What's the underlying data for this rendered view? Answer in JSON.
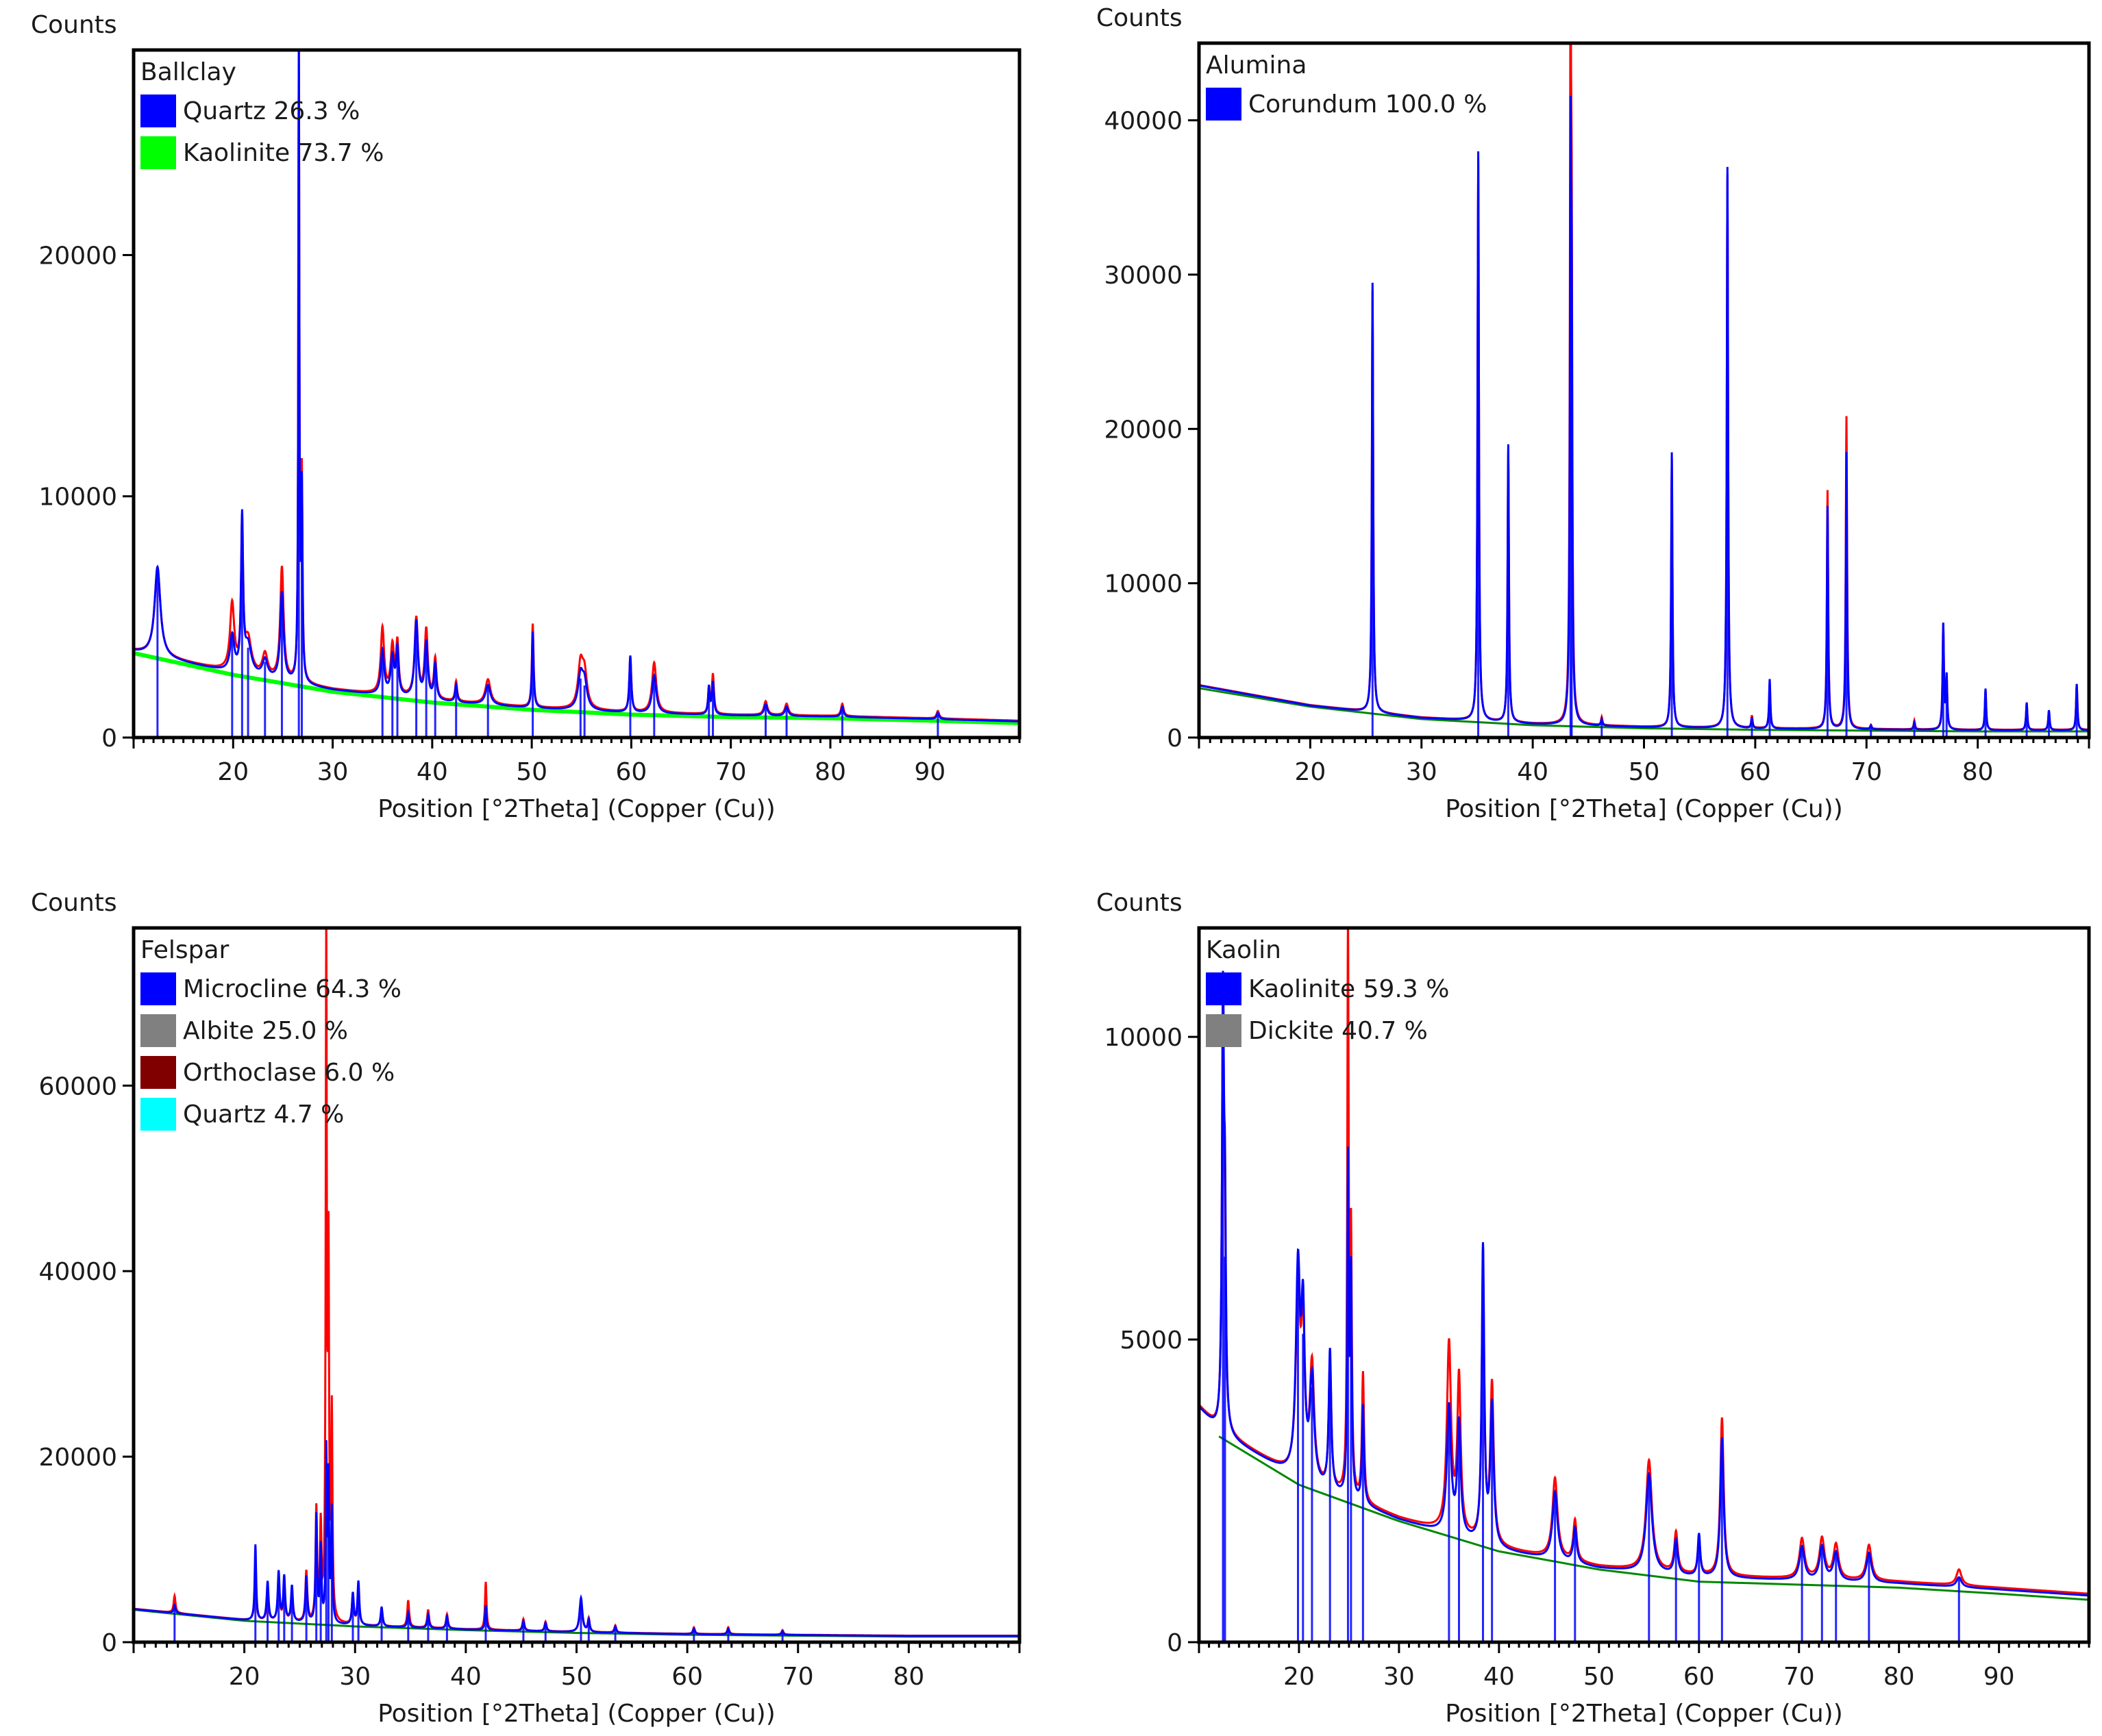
{
  "colors": {
    "observed": "#ff0000",
    "calculated": "#0000ff",
    "background": "#008800",
    "frame": "#000000"
  },
  "chart_data": [
    {
      "type": "line",
      "title": "Ballclay",
      "xlabel": "Position [°2Theta] (Copper (Cu))",
      "ylabel": "Counts",
      "xlim": [
        10,
        99
      ],
      "ylim": [
        0,
        28500
      ],
      "xticks": [
        20,
        30,
        40,
        50,
        60,
        70,
        80,
        90
      ],
      "yticks": [
        0,
        10000,
        20000
      ],
      "legend": [
        {
          "label": "Quartz 26.3 %",
          "color": "#0000ff"
        },
        {
          "label": "Kaolinite 73.7 %",
          "color": "#00ff00"
        }
      ],
      "legend_position": "top-left",
      "background_line": {
        "color": "#00ff00",
        "x": [
          10,
          20,
          30,
          40,
          50,
          60,
          70,
          80,
          90,
          99
        ],
        "y": [
          3500,
          2600,
          1900,
          1450,
          1150,
          950,
          850,
          800,
          700,
          600
        ]
      },
      "baseline": [
        [
          10,
          3600
        ],
        [
          20,
          2700
        ],
        [
          30,
          2000
        ],
        [
          40,
          1550
        ],
        [
          50,
          1250
        ],
        [
          60,
          1050
        ],
        [
          70,
          950
        ],
        [
          80,
          900
        ],
        [
          90,
          800
        ],
        [
          99,
          700
        ]
      ],
      "peaks": [
        {
          "x": 12.4,
          "obs": 7000,
          "calc": 7100,
          "w": 0.35
        },
        {
          "x": 19.9,
          "obs": 5500,
          "calc": 4200,
          "w": 0.25
        },
        {
          "x": 20.9,
          "obs": 8600,
          "calc": 9000,
          "w": 0.12
        },
        {
          "x": 21.5,
          "obs": 4000,
          "calc": 3800,
          "w": 0.4
        },
        {
          "x": 23.2,
          "obs": 3400,
          "calc": 3200,
          "w": 0.3
        },
        {
          "x": 24.9,
          "obs": 7000,
          "calc": 6000,
          "w": 0.2
        },
        {
          "x": 26.6,
          "obs": 28500,
          "calc": 28500,
          "w": 0.06
        },
        {
          "x": 26.9,
          "obs": 10500,
          "calc": 10000,
          "w": 0.08
        },
        {
          "x": 35.0,
          "obs": 4500,
          "calc": 3600,
          "w": 0.2
        },
        {
          "x": 36.0,
          "obs": 3700,
          "calc": 3300,
          "w": 0.2
        },
        {
          "x": 36.5,
          "obs": 3800,
          "calc": 3600,
          "w": 0.15
        },
        {
          "x": 38.4,
          "obs": 4900,
          "calc": 4800,
          "w": 0.2
        },
        {
          "x": 39.4,
          "obs": 4400,
          "calc": 3900,
          "w": 0.18
        },
        {
          "x": 40.3,
          "obs": 3200,
          "calc": 3000,
          "w": 0.15
        },
        {
          "x": 42.4,
          "obs": 2300,
          "calc": 2200,
          "w": 0.12
        },
        {
          "x": 45.6,
          "obs": 2400,
          "calc": 2200,
          "w": 0.3
        },
        {
          "x": 50.1,
          "obs": 4700,
          "calc": 4400,
          "w": 0.1
        },
        {
          "x": 54.9,
          "obs": 2900,
          "calc": 2500,
          "w": 0.3
        },
        {
          "x": 55.3,
          "obs": 2500,
          "calc": 2200,
          "w": 0.3
        },
        {
          "x": 59.9,
          "obs": 3300,
          "calc": 3400,
          "w": 0.12
        },
        {
          "x": 62.3,
          "obs": 3100,
          "calc": 2600,
          "w": 0.25
        },
        {
          "x": 67.8,
          "obs": 2000,
          "calc": 2100,
          "w": 0.1
        },
        {
          "x": 68.2,
          "obs": 2600,
          "calc": 2300,
          "w": 0.12
        },
        {
          "x": 73.5,
          "obs": 1500,
          "calc": 1400,
          "w": 0.2
        },
        {
          "x": 75.6,
          "obs": 1400,
          "calc": 1300,
          "w": 0.2
        },
        {
          "x": 81.2,
          "obs": 1400,
          "calc": 1300,
          "w": 0.15
        },
        {
          "x": 90.8,
          "obs": 1100,
          "calc": 1050,
          "w": 0.15
        }
      ]
    },
    {
      "type": "line",
      "title": "Alumina",
      "xlabel": "Position [°2Theta] (Copper (Cu))",
      "ylabel": "Counts",
      "xlim": [
        10,
        90
      ],
      "ylim": [
        0,
        45000
      ],
      "xticks": [
        20,
        30,
        40,
        50,
        60,
        70,
        80
      ],
      "yticks": [
        0,
        10000,
        20000,
        30000,
        40000
      ],
      "legend": [
        {
          "label": "Corundum 100.0 %",
          "color": "#0000ff"
        }
      ],
      "legend_position": "top-left",
      "background_line": {
        "color": "#008800",
        "x": [
          10,
          20,
          30,
          40,
          50,
          60,
          70,
          80,
          90
        ],
        "y": [
          3200,
          2000,
          1200,
          800,
          600,
          500,
          450,
          400,
          400
        ]
      },
      "baseline": [
        [
          10,
          3400
        ],
        [
          20,
          2100
        ],
        [
          30,
          1300
        ],
        [
          40,
          900
        ],
        [
          50,
          700
        ],
        [
          60,
          600
        ],
        [
          70,
          550
        ],
        [
          80,
          500
        ],
        [
          90,
          500
        ]
      ],
      "peaks": [
        {
          "x": 25.6,
          "obs": 29000,
          "calc": 29500,
          "w": 0.07
        },
        {
          "x": 35.1,
          "obs": 37500,
          "calc": 38000,
          "w": 0.07
        },
        {
          "x": 37.8,
          "obs": 18500,
          "calc": 19000,
          "w": 0.07
        },
        {
          "x": 43.4,
          "obs": 44500,
          "calc": 36000,
          "w": 0.07
        },
        {
          "x": 43.5,
          "obs": 23500,
          "calc": 22000,
          "w": 0.06
        },
        {
          "x": 46.2,
          "obs": 1300,
          "calc": 1200,
          "w": 0.07
        },
        {
          "x": 52.5,
          "obs": 18000,
          "calc": 18500,
          "w": 0.07
        },
        {
          "x": 57.5,
          "obs": 36500,
          "calc": 37000,
          "w": 0.07
        },
        {
          "x": 59.7,
          "obs": 1400,
          "calc": 1300,
          "w": 0.07
        },
        {
          "x": 61.3,
          "obs": 3500,
          "calc": 3800,
          "w": 0.07
        },
        {
          "x": 66.5,
          "obs": 16000,
          "calc": 15000,
          "w": 0.07
        },
        {
          "x": 68.2,
          "obs": 20800,
          "calc": 18500,
          "w": 0.07
        },
        {
          "x": 70.4,
          "obs": 800,
          "calc": 800,
          "w": 0.07
        },
        {
          "x": 74.3,
          "obs": 1100,
          "calc": 1000,
          "w": 0.07
        },
        {
          "x": 76.9,
          "obs": 7200,
          "calc": 7300,
          "w": 0.07
        },
        {
          "x": 77.2,
          "obs": 3800,
          "calc": 3900,
          "w": 0.07
        },
        {
          "x": 80.7,
          "obs": 3100,
          "calc": 3200,
          "w": 0.07
        },
        {
          "x": 84.4,
          "obs": 2200,
          "calc": 2300,
          "w": 0.07
        },
        {
          "x": 86.4,
          "obs": 1700,
          "calc": 1800,
          "w": 0.07
        },
        {
          "x": 88.9,
          "obs": 3400,
          "calc": 3500,
          "w": 0.07
        }
      ]
    },
    {
      "type": "line",
      "title": "Felspar",
      "xlabel": "Position [°2Theta] (Copper (Cu))",
      "ylabel": "Counts",
      "xlim": [
        10,
        90
      ],
      "ylim": [
        0,
        77000
      ],
      "xticks": [
        20,
        30,
        40,
        50,
        60,
        70,
        80
      ],
      "yticks": [
        0,
        20000,
        40000,
        60000
      ],
      "legend": [
        {
          "label": "Microcline 64.3 %",
          "color": "#0000ff"
        },
        {
          "label": "Albite 25.0 %",
          "color": "#808080"
        },
        {
          "label": "Orthoclase 6.0 %",
          "color": "#800000"
        },
        {
          "label": "Quartz 4.7 %",
          "color": "#00ffff"
        }
      ],
      "legend_position": "top-left",
      "background_line": {
        "color": "#008800",
        "x": [
          10,
          20,
          30,
          40,
          50,
          60,
          70,
          80,
          90
        ],
        "y": [
          3500,
          2300,
          1700,
          1300,
          1000,
          800,
          700,
          600,
          600
        ]
      },
      "baseline": [
        [
          10,
          3600
        ],
        [
          20,
          2400
        ],
        [
          30,
          1800
        ],
        [
          40,
          1400
        ],
        [
          50,
          1100
        ],
        [
          60,
          900
        ],
        [
          70,
          800
        ],
        [
          80,
          700
        ],
        [
          90,
          700
        ]
      ],
      "peaks": [
        {
          "x": 13.7,
          "obs": 5000,
          "calc": 4000,
          "w": 0.1
        },
        {
          "x": 21.0,
          "obs": 9000,
          "calc": 10500,
          "w": 0.08
        },
        {
          "x": 22.1,
          "obs": 5500,
          "calc": 6500,
          "w": 0.1
        },
        {
          "x": 23.1,
          "obs": 7000,
          "calc": 7500,
          "w": 0.1
        },
        {
          "x": 23.6,
          "obs": 6000,
          "calc": 7000,
          "w": 0.1
        },
        {
          "x": 24.3,
          "obs": 5500,
          "calc": 6000,
          "w": 0.1
        },
        {
          "x": 25.6,
          "obs": 7500,
          "calc": 7000,
          "w": 0.1
        },
        {
          "x": 26.5,
          "obs": 14000,
          "calc": 13500,
          "w": 0.08
        },
        {
          "x": 26.9,
          "obs": 12000,
          "calc": 10000,
          "w": 0.08
        },
        {
          "x": 27.4,
          "obs": 76000,
          "calc": 20000,
          "w": 0.06
        },
        {
          "x": 27.6,
          "obs": 39000,
          "calc": 17000,
          "w": 0.06
        },
        {
          "x": 27.9,
          "obs": 24000,
          "calc": 14000,
          "w": 0.07
        },
        {
          "x": 29.8,
          "obs": 5000,
          "calc": 5200,
          "w": 0.1
        },
        {
          "x": 30.3,
          "obs": 5500,
          "calc": 6500,
          "w": 0.1
        },
        {
          "x": 32.4,
          "obs": 3500,
          "calc": 3800,
          "w": 0.1
        },
        {
          "x": 34.8,
          "obs": 4500,
          "calc": 3200,
          "w": 0.1
        },
        {
          "x": 36.6,
          "obs": 3500,
          "calc": 3000,
          "w": 0.1
        },
        {
          "x": 38.3,
          "obs": 3000,
          "calc": 2800,
          "w": 0.1
        },
        {
          "x": 41.8,
          "obs": 6500,
          "calc": 4000,
          "w": 0.08
        },
        {
          "x": 45.2,
          "obs": 2500,
          "calc": 2300,
          "w": 0.1
        },
        {
          "x": 47.2,
          "obs": 2200,
          "calc": 2100,
          "w": 0.1
        },
        {
          "x": 50.4,
          "obs": 4500,
          "calc": 4800,
          "w": 0.15
        },
        {
          "x": 51.1,
          "obs": 2500,
          "calc": 2400,
          "w": 0.1
        },
        {
          "x": 53.5,
          "obs": 1800,
          "calc": 1700,
          "w": 0.1
        },
        {
          "x": 60.6,
          "obs": 1600,
          "calc": 1500,
          "w": 0.1
        },
        {
          "x": 63.7,
          "obs": 1600,
          "calc": 1500,
          "w": 0.1
        },
        {
          "x": 68.6,
          "obs": 1300,
          "calc": 1200,
          "w": 0.1
        }
      ]
    },
    {
      "type": "line",
      "title": "Kaolin",
      "xlabel": "Position [°2Theta] (Copper (Cu))",
      "ylabel": "Counts",
      "xlim": [
        10,
        99
      ],
      "ylim": [
        0,
        11800
      ],
      "xticks": [
        20,
        30,
        40,
        50,
        60,
        70,
        80,
        90
      ],
      "yticks": [
        0,
        5000,
        10000
      ],
      "legend": [
        {
          "label": "Kaolinite 59.3 %",
          "color": "#0000ff"
        },
        {
          "label": "Dickite 40.7 %",
          "color": "#808080"
        }
      ],
      "legend_position": "top-left",
      "background_line": {
        "color": "#008800",
        "x": [
          12,
          20,
          30,
          40,
          50,
          60,
          70,
          80,
          90,
          99
        ],
        "y": [
          3400,
          2600,
          2000,
          1500,
          1200,
          1000,
          950,
          900,
          800,
          700
        ]
      },
      "baseline": [
        [
          10,
          3900
        ],
        [
          12,
          3500
        ],
        [
          20,
          2700
        ],
        [
          30,
          2050
        ],
        [
          40,
          1550
        ],
        [
          50,
          1250
        ],
        [
          60,
          1100
        ],
        [
          70,
          1050
        ],
        [
          80,
          1000
        ],
        [
          90,
          900
        ],
        [
          99,
          800
        ]
      ],
      "peaks": [
        {
          "x": 12.4,
          "obs": 10500,
          "calc": 10500,
          "w": 0.12
        },
        {
          "x": 12.6,
          "obs": 6000,
          "calc": 6500,
          "w": 0.1
        },
        {
          "x": 19.9,
          "obs": 5800,
          "calc": 6100,
          "w": 0.25
        },
        {
          "x": 20.4,
          "obs": 5000,
          "calc": 5200,
          "w": 0.2
        },
        {
          "x": 21.3,
          "obs": 4500,
          "calc": 4300,
          "w": 0.25
        },
        {
          "x": 23.1,
          "obs": 4600,
          "calc": 4800,
          "w": 0.15
        },
        {
          "x": 24.9,
          "obs": 11700,
          "calc": 7800,
          "w": 0.08
        },
        {
          "x": 25.2,
          "obs": 6500,
          "calc": 6000,
          "w": 0.1
        },
        {
          "x": 26.4,
          "obs": 4400,
          "calc": 3900,
          "w": 0.12
        },
        {
          "x": 35.0,
          "obs": 4900,
          "calc": 3900,
          "w": 0.25
        },
        {
          "x": 36.0,
          "obs": 4300,
          "calc": 3600,
          "w": 0.2
        },
        {
          "x": 38.4,
          "obs": 6100,
          "calc": 6500,
          "w": 0.15
        },
        {
          "x": 39.3,
          "obs": 4200,
          "calc": 3900,
          "w": 0.2
        },
        {
          "x": 45.6,
          "obs": 2700,
          "calc": 2500,
          "w": 0.3
        },
        {
          "x": 47.6,
          "obs": 2000,
          "calc": 1900,
          "w": 0.2
        },
        {
          "x": 55.0,
          "obs": 3000,
          "calc": 2800,
          "w": 0.35
        },
        {
          "x": 57.7,
          "obs": 1800,
          "calc": 1700,
          "w": 0.2
        },
        {
          "x": 60.0,
          "obs": 1700,
          "calc": 1800,
          "w": 0.15
        },
        {
          "x": 62.3,
          "obs": 3700,
          "calc": 3400,
          "w": 0.2
        },
        {
          "x": 70.3,
          "obs": 1700,
          "calc": 1600,
          "w": 0.3
        },
        {
          "x": 72.3,
          "obs": 1700,
          "calc": 1600,
          "w": 0.3
        },
        {
          "x": 73.7,
          "obs": 1600,
          "calc": 1500,
          "w": 0.3
        },
        {
          "x": 77.0,
          "obs": 1600,
          "calc": 1500,
          "w": 0.3
        },
        {
          "x": 86.0,
          "obs": 1200,
          "calc": 1100,
          "w": 0.3
        }
      ]
    }
  ]
}
